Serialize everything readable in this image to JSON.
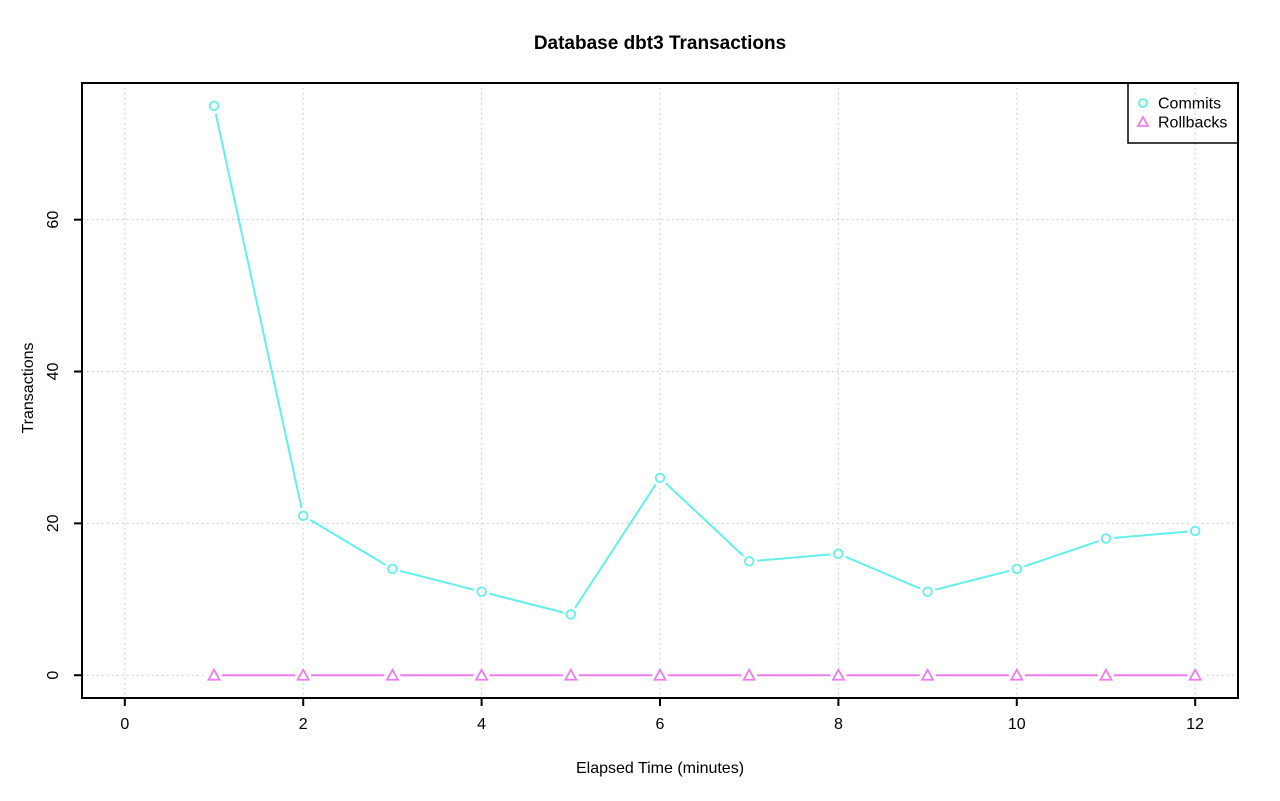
{
  "chart_data": {
    "type": "line",
    "title": "Database dbt3 Transactions",
    "xlabel": "Elapsed Time (minutes)",
    "ylabel": "Transactions",
    "x": [
      1,
      2,
      3,
      4,
      5,
      6,
      7,
      8,
      9,
      10,
      11,
      12
    ],
    "series": [
      {
        "name": "Commits",
        "marker": "circle",
        "color": "#62EFEF",
        "values": [
          75,
          21,
          14,
          11,
          8,
          26,
          15,
          16,
          11,
          14,
          18,
          19
        ]
      },
      {
        "name": "Rollbacks",
        "marker": "triangle",
        "color": "#EE7CEE",
        "values": [
          0,
          0,
          0,
          0,
          0,
          0,
          0,
          0,
          0,
          0,
          0,
          0
        ]
      }
    ],
    "xlim": [
      0,
      12
    ],
    "ylim": [
      0,
      75
    ],
    "xticks": [
      0,
      2,
      4,
      6,
      8,
      10,
      12
    ],
    "yticks": [
      0,
      20,
      40,
      60
    ],
    "grid": true,
    "grid_style": "dotted",
    "grid_color": "#C4C4C4",
    "axis_color": "#000000",
    "background": "#FFFFFF",
    "legend": {
      "position": "top-right",
      "entries": [
        "Commits",
        "Rollbacks"
      ]
    }
  }
}
